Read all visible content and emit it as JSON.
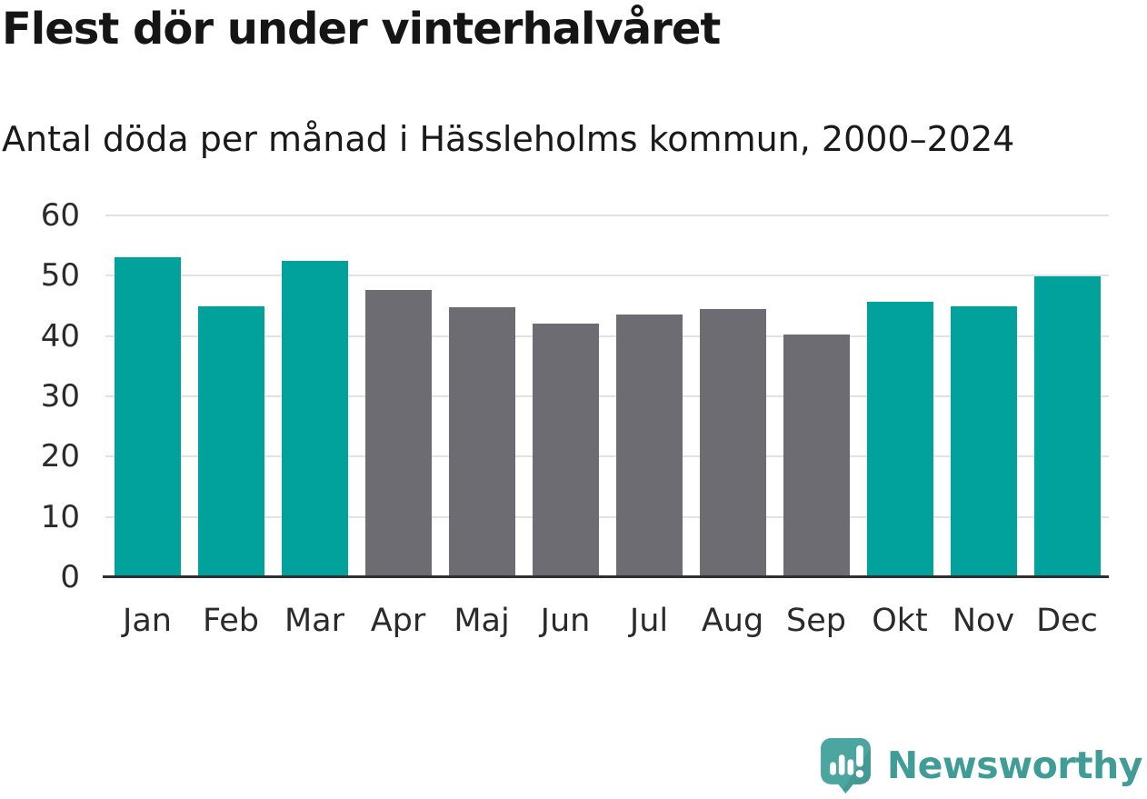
{
  "colors": {
    "highlight": "#00a29b",
    "muted": "#6d6c72",
    "grid": "#e2e2e2",
    "axis": "#2f2f2f",
    "title_text": "#151515",
    "tick_text": "#2b2b2b",
    "logo_fill": "#4ba69f",
    "logo_fold": "#439a93",
    "brand_text": "#3f9c96"
  },
  "chart_data": {
    "type": "bar",
    "title": "Flest dör under vinterhalvåret",
    "subtitle": "Antal döda per månad i Hässleholms kommun, 2000–2024",
    "categories": [
      "Jan",
      "Feb",
      "Mar",
      "Apr",
      "Maj",
      "Jun",
      "Jul",
      "Aug",
      "Sep",
      "Okt",
      "Nov",
      "Dec"
    ],
    "values": [
      53.0,
      45.0,
      52.5,
      47.6,
      44.7,
      42.0,
      43.5,
      44.5,
      40.3,
      45.7,
      44.9,
      49.9
    ],
    "bar_colors": [
      "highlight",
      "highlight",
      "highlight",
      "muted",
      "muted",
      "muted",
      "muted",
      "muted",
      "muted",
      "highlight",
      "highlight",
      "highlight"
    ],
    "xlabel": "",
    "ylabel": "",
    "ylim": [
      0,
      60
    ],
    "yticks": [
      0,
      10,
      20,
      30,
      40,
      50,
      60
    ],
    "grid": "horizontal-only",
    "legend": "none"
  },
  "footer": {
    "brand": "Newsworthy",
    "logo_icon": "newsworthy-speech-bubble-bar-chart-icon"
  }
}
